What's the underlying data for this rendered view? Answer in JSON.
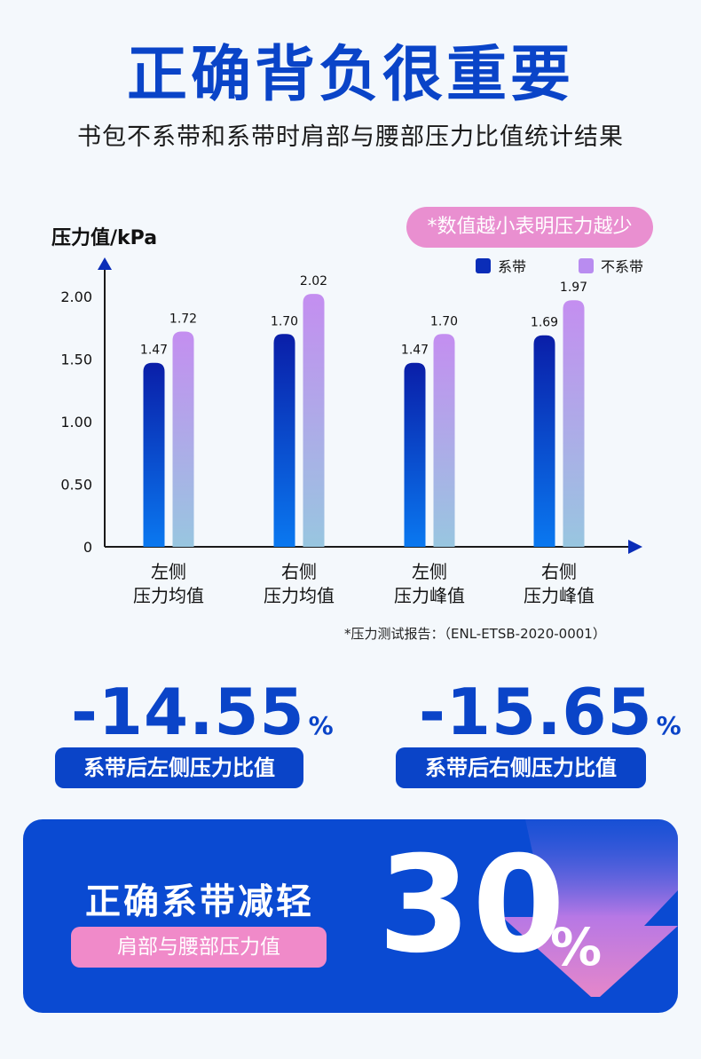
{
  "header": {
    "title": "正确背负很重要",
    "subtitle": "书包不系带和系带时肩部与腰部压力比值统计结果"
  },
  "note": "*数值越小表明压力越少",
  "source": "*压力测试报告：（ENL-ETSB-2020-0001）",
  "colors": {
    "accent": "#0a44c8",
    "pink": "#e98fd0"
  },
  "chart_data": {
    "type": "bar",
    "ylabel": "压力值/kPa",
    "categories": [
      [
        "左侧",
        "压力均值"
      ],
      [
        "右侧",
        "压力均值"
      ],
      [
        "左侧",
        "压力峰值"
      ],
      [
        "右侧",
        "压力峰值"
      ]
    ],
    "y_ticks": [
      "0",
      "0.50",
      "1.00",
      "1.50",
      "2.00"
    ],
    "ylim": [
      0,
      2.2
    ],
    "legend_position": "top-right",
    "series": [
      {
        "name": "系带",
        "values": [
          1.47,
          1.7,
          1.47,
          1.69
        ],
        "labels": [
          "1.47",
          "1.70",
          "1.47",
          "1.69"
        ],
        "color_top": "#0a1ea8",
        "color_bottom": "#0a78f0"
      },
      {
        "name": "不系带",
        "values": [
          1.72,
          2.02,
          1.7,
          1.97
        ],
        "labels": [
          "1.72",
          "2.02",
          "1.70",
          "1.97"
        ],
        "color_top": "#c48ef0",
        "color_bottom": "#98c6e0"
      }
    ]
  },
  "stats": [
    {
      "value": "-14.55",
      "unit": "%",
      "label": "系带后左侧压力比值"
    },
    {
      "value": "-15.65",
      "unit": "%",
      "label": "系带后右侧压力比值"
    }
  ],
  "banner": {
    "main": "正确系带减轻",
    "sub": "肩部与腰部压力值",
    "value": "30",
    "unit": "%"
  }
}
